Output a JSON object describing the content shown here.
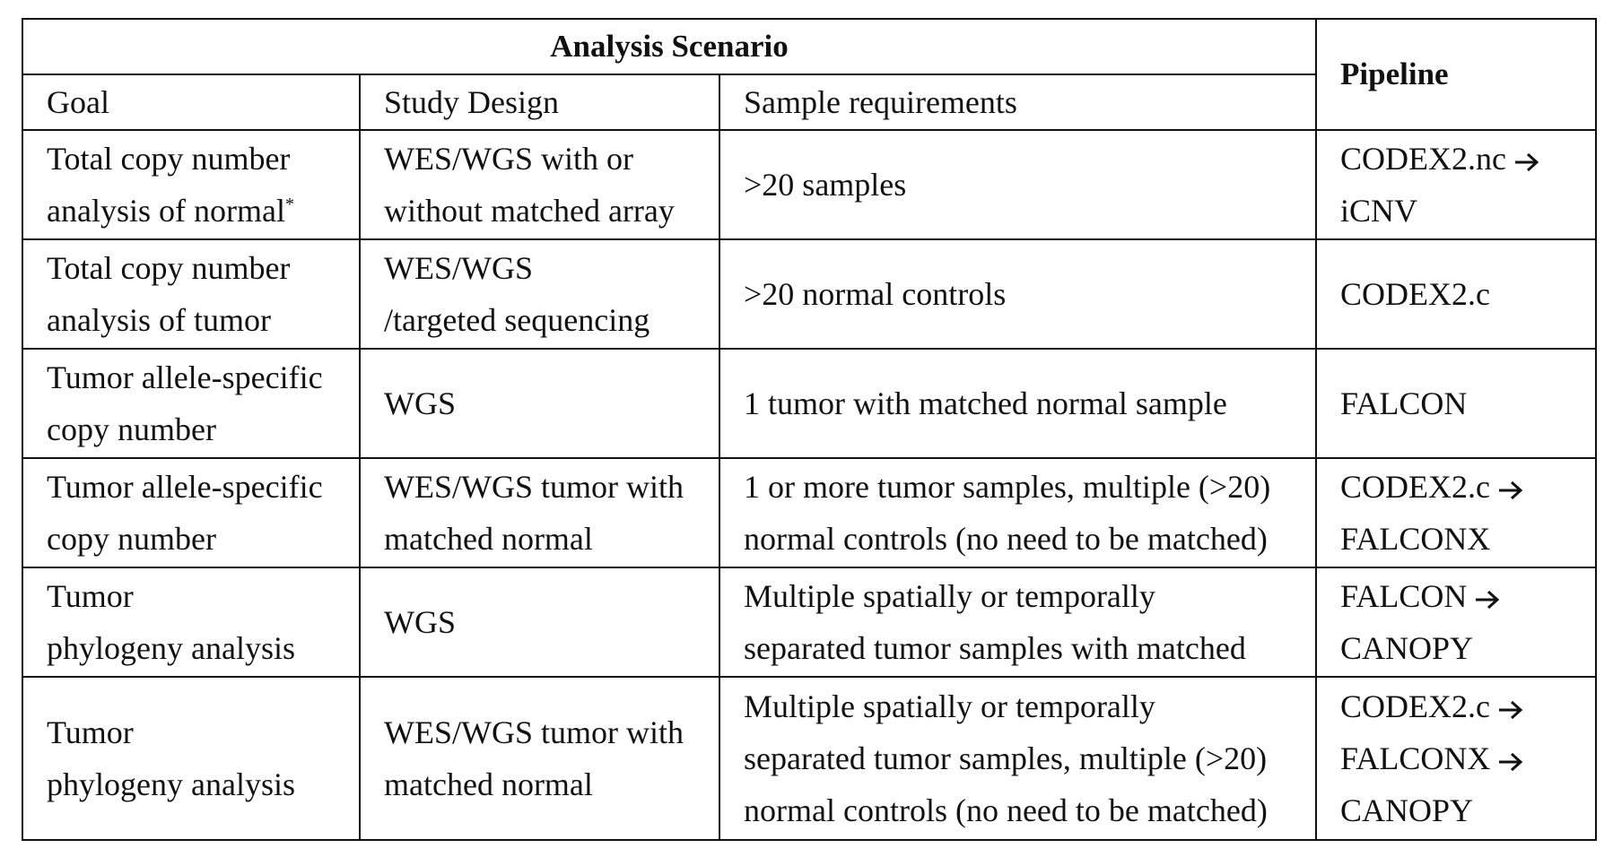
{
  "header": {
    "group_title": "Analysis Scenario",
    "pipeline_title": "Pipeline",
    "columns": [
      "Goal",
      "Study Design",
      "Sample requirements"
    ]
  },
  "rows": [
    {
      "goal": [
        "Total copy number",
        "analysis of normal"
      ],
      "goal_footnote": "*",
      "design": [
        "WES/WGS with or",
        "without matched array"
      ],
      "samples": [
        ">20 samples"
      ],
      "pipeline": [
        "CODEX2.nc",
        "iCNV"
      ]
    },
    {
      "goal": [
        "Total copy number",
        "analysis of tumor"
      ],
      "design": [
        "WES/WGS",
        "/targeted sequencing"
      ],
      "samples": [
        ">20 normal controls"
      ],
      "pipeline": [
        "CODEX2.c"
      ]
    },
    {
      "goal": [
        "Tumor allele-specific",
        "copy number"
      ],
      "design": [
        "WGS"
      ],
      "samples": [
        "1 tumor with matched normal sample"
      ],
      "pipeline": [
        "FALCON"
      ]
    },
    {
      "goal": [
        "Tumor allele-specific",
        "copy number"
      ],
      "design": [
        "WES/WGS tumor with",
        "matched normal"
      ],
      "samples": [
        "1 or more tumor samples, multiple (>20)",
        "normal controls (no need to be matched)"
      ],
      "pipeline": [
        "CODEX2.c",
        "FALCONX"
      ]
    },
    {
      "goal": [
        "Tumor",
        "phylogeny analysis"
      ],
      "design": [
        "WGS"
      ],
      "samples": [
        "Multiple spatially or temporally",
        "separated tumor samples with matched"
      ],
      "pipeline": [
        "FALCON",
        "CANOPY"
      ]
    },
    {
      "goal": [
        "Tumor",
        "phylogeny analysis"
      ],
      "design": [
        "WES/WGS tumor with",
        "matched normal"
      ],
      "samples": [
        "Multiple spatially or temporally",
        "separated tumor samples, multiple (>20)",
        "normal controls (no need to be matched)"
      ],
      "pipeline": [
        "CODEX2.c",
        "FALCONX",
        "CANOPY"
      ]
    }
  ]
}
